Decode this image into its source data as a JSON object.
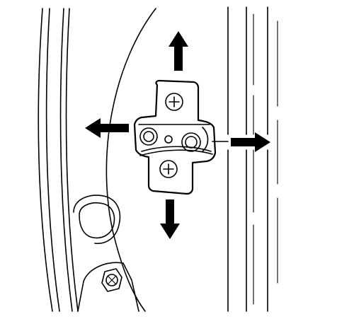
{
  "figure": {
    "subject": "door-striker-plate-adjustment",
    "icons": [
      "arrow-up-icon",
      "arrow-down-icon",
      "arrow-left-icon",
      "arrow-right-icon",
      "phillips-screw-icon",
      "hex-bolt-icon"
    ],
    "line_color": "#000000",
    "background_color": "#ffffff"
  }
}
